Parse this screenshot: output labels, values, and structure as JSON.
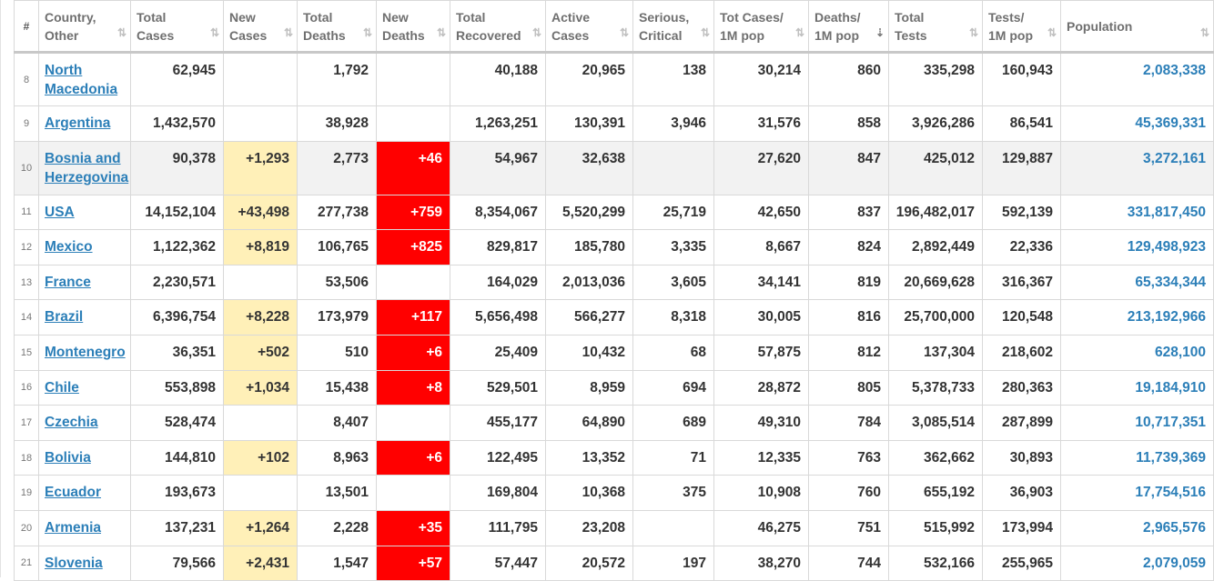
{
  "table": {
    "headers": {
      "index": "#",
      "country": "Country,\nOther",
      "total_cases": "Total\nCases",
      "new_cases": "New\nCases",
      "total_deaths": "Total\nDeaths",
      "new_deaths": "New\nDeaths",
      "total_recovered": "Total\nRecovered",
      "active_cases": "Active\nCases",
      "serious_critical": "Serious,\nCritical",
      "tot_cases_1m": "Tot Cases/\n1M pop",
      "deaths_1m": "Deaths/\n1M pop",
      "total_tests": "Total\nTests",
      "tests_1m": "Tests/\n1M pop",
      "population": "Population"
    },
    "sort_icon": "⇅",
    "sort_active_icon": "⇣",
    "rows": [
      {
        "idx": "8",
        "country": "North Macedonia",
        "total_cases": "62,945",
        "new_cases": "",
        "total_deaths": "1,792",
        "new_deaths": "",
        "total_recovered": "40,188",
        "active_cases": "20,965",
        "serious_critical": "138",
        "tot_cases_1m": "30,214",
        "deaths_1m": "860",
        "total_tests": "335,298",
        "tests_1m": "160,943",
        "population": "2,083,338"
      },
      {
        "idx": "9",
        "country": "Argentina",
        "total_cases": "1,432,570",
        "new_cases": "",
        "total_deaths": "38,928",
        "new_deaths": "",
        "total_recovered": "1,263,251",
        "active_cases": "130,391",
        "serious_critical": "3,946",
        "tot_cases_1m": "31,576",
        "deaths_1m": "858",
        "total_tests": "3,926,286",
        "tests_1m": "86,541",
        "population": "45,369,331"
      },
      {
        "idx": "10",
        "country": "Bosnia and Herzegovina",
        "total_cases": "90,378",
        "new_cases": "+1,293",
        "total_deaths": "2,773",
        "new_deaths": "+46",
        "total_recovered": "54,967",
        "active_cases": "32,638",
        "serious_critical": "",
        "tot_cases_1m": "27,620",
        "deaths_1m": "847",
        "total_tests": "425,012",
        "tests_1m": "129,887",
        "population": "3,272,161"
      },
      {
        "idx": "11",
        "country": "USA",
        "total_cases": "14,152,104",
        "new_cases": "+43,498",
        "total_deaths": "277,738",
        "new_deaths": "+759",
        "total_recovered": "8,354,067",
        "active_cases": "5,520,299",
        "serious_critical": "25,719",
        "tot_cases_1m": "42,650",
        "deaths_1m": "837",
        "total_tests": "196,482,017",
        "tests_1m": "592,139",
        "population": "331,817,450"
      },
      {
        "idx": "12",
        "country": "Mexico",
        "total_cases": "1,122,362",
        "new_cases": "+8,819",
        "total_deaths": "106,765",
        "new_deaths": "+825",
        "total_recovered": "829,817",
        "active_cases": "185,780",
        "serious_critical": "3,335",
        "tot_cases_1m": "8,667",
        "deaths_1m": "824",
        "total_tests": "2,892,449",
        "tests_1m": "22,336",
        "population": "129,498,923"
      },
      {
        "idx": "13",
        "country": "France",
        "total_cases": "2,230,571",
        "new_cases": "",
        "total_deaths": "53,506",
        "new_deaths": "",
        "total_recovered": "164,029",
        "active_cases": "2,013,036",
        "serious_critical": "3,605",
        "tot_cases_1m": "34,141",
        "deaths_1m": "819",
        "total_tests": "20,669,628",
        "tests_1m": "316,367",
        "population": "65,334,344"
      },
      {
        "idx": "14",
        "country": "Brazil",
        "total_cases": "6,396,754",
        "new_cases": "+8,228",
        "total_deaths": "173,979",
        "new_deaths": "+117",
        "total_recovered": "5,656,498",
        "active_cases": "566,277",
        "serious_critical": "8,318",
        "tot_cases_1m": "30,005",
        "deaths_1m": "816",
        "total_tests": "25,700,000",
        "tests_1m": "120,548",
        "population": "213,192,966"
      },
      {
        "idx": "15",
        "country": "Montenegro",
        "total_cases": "36,351",
        "new_cases": "+502",
        "total_deaths": "510",
        "new_deaths": "+6",
        "total_recovered": "25,409",
        "active_cases": "10,432",
        "serious_critical": "68",
        "tot_cases_1m": "57,875",
        "deaths_1m": "812",
        "total_tests": "137,304",
        "tests_1m": "218,602",
        "population": "628,100"
      },
      {
        "idx": "16",
        "country": "Chile",
        "total_cases": "553,898",
        "new_cases": "+1,034",
        "total_deaths": "15,438",
        "new_deaths": "+8",
        "total_recovered": "529,501",
        "active_cases": "8,959",
        "serious_critical": "694",
        "tot_cases_1m": "28,872",
        "deaths_1m": "805",
        "total_tests": "5,378,733",
        "tests_1m": "280,363",
        "population": "19,184,910"
      },
      {
        "idx": "17",
        "country": "Czechia",
        "total_cases": "528,474",
        "new_cases": "",
        "total_deaths": "8,407",
        "new_deaths": "",
        "total_recovered": "455,177",
        "active_cases": "64,890",
        "serious_critical": "689",
        "tot_cases_1m": "49,310",
        "deaths_1m": "784",
        "total_tests": "3,085,514",
        "tests_1m": "287,899",
        "population": "10,717,351"
      },
      {
        "idx": "18",
        "country": "Bolivia",
        "total_cases": "144,810",
        "new_cases": "+102",
        "total_deaths": "8,963",
        "new_deaths": "+6",
        "total_recovered": "122,495",
        "active_cases": "13,352",
        "serious_critical": "71",
        "tot_cases_1m": "12,335",
        "deaths_1m": "763",
        "total_tests": "362,662",
        "tests_1m": "30,893",
        "population": "11,739,369"
      },
      {
        "idx": "19",
        "country": "Ecuador",
        "total_cases": "193,673",
        "new_cases": "",
        "total_deaths": "13,501",
        "new_deaths": "",
        "total_recovered": "169,804",
        "active_cases": "10,368",
        "serious_critical": "375",
        "tot_cases_1m": "10,908",
        "deaths_1m": "760",
        "total_tests": "655,192",
        "tests_1m": "36,903",
        "population": "17,754,516"
      },
      {
        "idx": "20",
        "country": "Armenia",
        "total_cases": "137,231",
        "new_cases": "+1,264",
        "total_deaths": "2,228",
        "new_deaths": "+35",
        "total_recovered": "111,795",
        "active_cases": "23,208",
        "serious_critical": "",
        "tot_cases_1m": "46,275",
        "deaths_1m": "751",
        "total_tests": "515,992",
        "tests_1m": "173,994",
        "population": "2,965,576"
      },
      {
        "idx": "21",
        "country": "Slovenia",
        "total_cases": "79,566",
        "new_cases": "+2,431",
        "total_deaths": "1,547",
        "new_deaths": "+57",
        "total_recovered": "57,447",
        "active_cases": "20,572",
        "serious_critical": "197",
        "tot_cases_1m": "38,270",
        "deaths_1m": "744",
        "total_tests": "532,166",
        "tests_1m": "255,965",
        "population": "2,079,059"
      }
    ]
  },
  "colors": {
    "link": "#2c7fb8",
    "new_cases_highlight": "#fff0b8",
    "new_deaths_highlight": "#ff0000",
    "text": "#333333"
  }
}
